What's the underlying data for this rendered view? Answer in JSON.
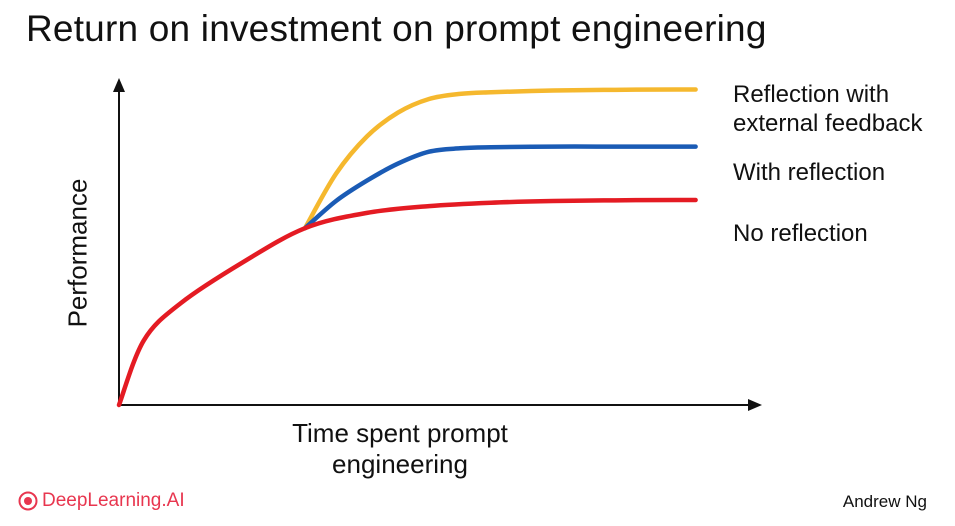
{
  "page": {
    "brand": "DeepLearning.AI",
    "author": "Andrew Ng"
  },
  "colors": {
    "no_reflection": "#e41b23",
    "with_reflection": "#1a5bb5",
    "external_feedback": "#f5b82e",
    "axis": "#111111",
    "brand": "#e8364f"
  },
  "chart_data": {
    "type": "line",
    "title": "Return on investment on prompt engineering",
    "xlabel": "Time spent prompt engineering",
    "ylabel": "Performance",
    "xlim": [
      0,
      10
    ],
    "ylim": [
      0,
      10
    ],
    "grid": false,
    "legend": "right, at line ends",
    "series": [
      {
        "name": "No reflection",
        "x": [
          0,
          0.4,
          1,
          2,
          3,
          4,
          5,
          6,
          7,
          8,
          9,
          9.3
        ],
        "y": [
          0,
          1.9,
          3.0,
          4.2,
          5.2,
          5.65,
          5.85,
          5.95,
          6.0,
          6.02,
          6.03,
          6.03
        ]
      },
      {
        "name": "With reflection",
        "x": [
          3,
          3.5,
          4,
          4.5,
          5,
          5.5,
          6,
          7,
          8,
          9,
          9.3
        ],
        "y": [
          5.2,
          6.0,
          6.6,
          7.1,
          7.45,
          7.55,
          7.58,
          7.6,
          7.6,
          7.6,
          7.6
        ]
      },
      {
        "name": "Reflection with\nexternal feedback",
        "x": [
          3,
          3.5,
          4,
          4.5,
          5,
          5.5,
          6,
          7,
          8,
          9,
          9.3
        ],
        "y": [
          5.2,
          6.8,
          7.9,
          8.6,
          9.0,
          9.15,
          9.2,
          9.25,
          9.27,
          9.28,
          9.28
        ]
      }
    ]
  }
}
